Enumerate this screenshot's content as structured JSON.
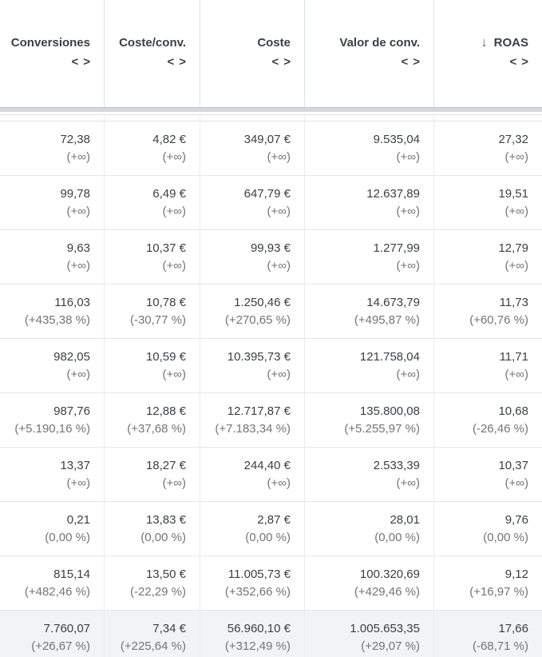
{
  "table": {
    "columns": [
      {
        "label": "Conversiones",
        "sorted": false
      },
      {
        "label": "Coste/conv.",
        "sorted": false
      },
      {
        "label": "Coste",
        "sorted": false
      },
      {
        "label": "Valor de conv.",
        "sorted": false
      },
      {
        "label": "ROAS",
        "sorted": true
      }
    ],
    "sort_icon": "↓",
    "column_adjust_icons": {
      "left": "<",
      "right": ">"
    },
    "rows": [
      {
        "is_total": false,
        "cells": [
          {
            "main": "72,38",
            "sub": "(+∞)"
          },
          {
            "main": "4,82 €",
            "sub": "(+∞)"
          },
          {
            "main": "349,07 €",
            "sub": "(+∞)"
          },
          {
            "main": "9.535,04",
            "sub": "(+∞)"
          },
          {
            "main": "27,32",
            "sub": "(+∞)"
          }
        ]
      },
      {
        "is_total": false,
        "cells": [
          {
            "main": "99,78",
            "sub": "(+∞)"
          },
          {
            "main": "6,49 €",
            "sub": "(+∞)"
          },
          {
            "main": "647,79 €",
            "sub": "(+∞)"
          },
          {
            "main": "12.637,89",
            "sub": "(+∞)"
          },
          {
            "main": "19,51",
            "sub": "(+∞)"
          }
        ]
      },
      {
        "is_total": false,
        "cells": [
          {
            "main": "9,63",
            "sub": "(+∞)"
          },
          {
            "main": "10,37 €",
            "sub": "(+∞)"
          },
          {
            "main": "99,93 €",
            "sub": "(+∞)"
          },
          {
            "main": "1.277,99",
            "sub": "(+∞)"
          },
          {
            "main": "12,79",
            "sub": "(+∞)"
          }
        ]
      },
      {
        "is_total": false,
        "cells": [
          {
            "main": "116,03",
            "sub": "(+435,38 %)"
          },
          {
            "main": "10,78 €",
            "sub": "(-30,77 %)"
          },
          {
            "main": "1.250,46 €",
            "sub": "(+270,65 %)"
          },
          {
            "main": "14.673,79",
            "sub": "(+495,87 %)"
          },
          {
            "main": "11,73",
            "sub": "(+60,76 %)"
          }
        ]
      },
      {
        "is_total": false,
        "cells": [
          {
            "main": "982,05",
            "sub": "(+∞)"
          },
          {
            "main": "10,59 €",
            "sub": "(+∞)"
          },
          {
            "main": "10.395,73 €",
            "sub": "(+∞)"
          },
          {
            "main": "121.758,04",
            "sub": "(+∞)"
          },
          {
            "main": "11,71",
            "sub": "(+∞)"
          }
        ]
      },
      {
        "is_total": false,
        "cells": [
          {
            "main": "987,76",
            "sub": "(+5.190,16 %)"
          },
          {
            "main": "12,88 €",
            "sub": "(+37,68 %)"
          },
          {
            "main": "12.717,87 €",
            "sub": "(+7.183,34 %)"
          },
          {
            "main": "135.800,08",
            "sub": "(+5.255,97 %)"
          },
          {
            "main": "10,68",
            "sub": "(-26,46 %)"
          }
        ]
      },
      {
        "is_total": false,
        "cells": [
          {
            "main": "13,37",
            "sub": "(+∞)"
          },
          {
            "main": "18,27 €",
            "sub": "(+∞)"
          },
          {
            "main": "244,40 €",
            "sub": "(+∞)"
          },
          {
            "main": "2.533,39",
            "sub": "(+∞)"
          },
          {
            "main": "10,37",
            "sub": "(+∞)"
          }
        ]
      },
      {
        "is_total": false,
        "cells": [
          {
            "main": "0,21",
            "sub": "(0,00 %)"
          },
          {
            "main": "13,83 €",
            "sub": "(0,00 %)"
          },
          {
            "main": "2,87 €",
            "sub": "(0,00 %)"
          },
          {
            "main": "28,01",
            "sub": "(0,00 %)"
          },
          {
            "main": "9,76",
            "sub": "(0,00 %)"
          }
        ]
      },
      {
        "is_total": false,
        "cells": [
          {
            "main": "815,14",
            "sub": "(+482,46 %)"
          },
          {
            "main": "13,50 €",
            "sub": "(-22,29 %)"
          },
          {
            "main": "11.005,73 €",
            "sub": "(+352,66 %)"
          },
          {
            "main": "100.320,69",
            "sub": "(+429,46 %)"
          },
          {
            "main": "9,12",
            "sub": "(+16,97 %)"
          }
        ]
      },
      {
        "is_total": true,
        "cells": [
          {
            "main": "7.760,07",
            "sub": "(+26,67 %)"
          },
          {
            "main": "7,34 €",
            "sub": "(+225,64 %)"
          },
          {
            "main": "56.960,10 €",
            "sub": "(+312,49 %)"
          },
          {
            "main": "1.005.653,35",
            "sub": "(+29,07 %)"
          },
          {
            "main": "17,66",
            "sub": "(-68,71 %)"
          }
        ]
      }
    ]
  },
  "colors": {
    "header_text": "#3c4043",
    "value_text": "#3c4043",
    "comparison_text": "#757575",
    "header_column_border": "#d9e2ec",
    "body_column_border": "#ececec",
    "row_border": "#e6e6e6",
    "scrollbar": "#d6d8da",
    "total_row_background": "#f1f3f4"
  }
}
